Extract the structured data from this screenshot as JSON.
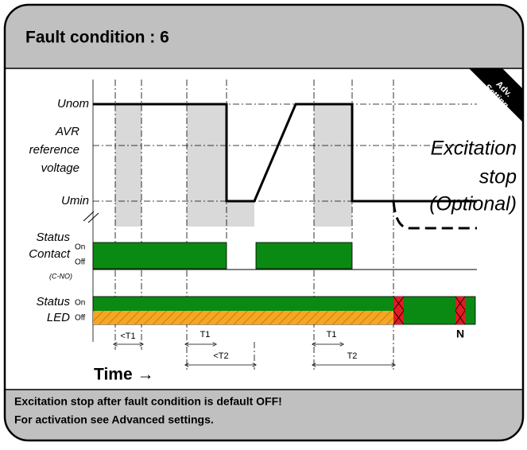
{
  "header": {
    "title": "Fault condition : 6"
  },
  "badge": [
    "Adv.",
    "Setting"
  ],
  "voltage": {
    "unom": "Unom",
    "avr": [
      "AVR",
      "reference",
      "voltage"
    ],
    "umin": "Umin"
  },
  "excitation": [
    "Excitation",
    "stop",
    "(Optional)"
  ],
  "contact": {
    "status": "Status",
    "on": "On",
    "name": "Contact",
    "off": "Off",
    "sub": "(C-NO)"
  },
  "led": {
    "status": "Status",
    "on": "On",
    "name": "LED",
    "off": "Off",
    "marker": "N"
  },
  "timings": [
    "<T1",
    "T1",
    "<T2",
    "T1",
    "T2"
  ],
  "time_label": "Time →",
  "footer": [
    "Excitation stop after fault condition is default OFF!",
    "For activation see Advanced settings."
  ]
}
